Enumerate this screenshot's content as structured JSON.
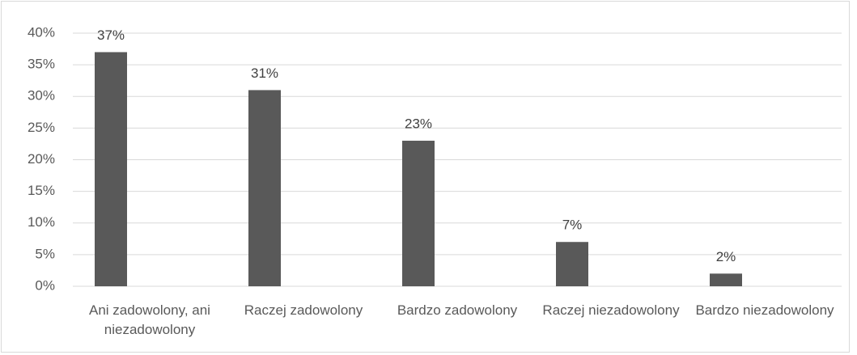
{
  "chart_data": {
    "type": "bar",
    "categories": [
      "Ani zadowolony, ani niezadowolony",
      "Raczej zadowolony",
      "Bardzo zadowolony",
      "Raczej niezadowolony",
      "Bardzo niezadowolony"
    ],
    "values": [
      37,
      31,
      23,
      7,
      2
    ],
    "value_labels": [
      "37%",
      "31%",
      "23%",
      "7%",
      "2%"
    ],
    "color": "#595959",
    "ylim": [
      0,
      40
    ],
    "yticks": [
      {
        "value": 0,
        "label": "0%"
      },
      {
        "value": 5,
        "label": "5%"
      },
      {
        "value": 10,
        "label": "10%"
      },
      {
        "value": 15,
        "label": "15%"
      },
      {
        "value": 20,
        "label": "20%"
      },
      {
        "value": 25,
        "label": "25%"
      },
      {
        "value": 30,
        "label": "30%"
      },
      {
        "value": 35,
        "label": "35%"
      },
      {
        "value": 40,
        "label": "40%"
      }
    ],
    "grid": true
  }
}
